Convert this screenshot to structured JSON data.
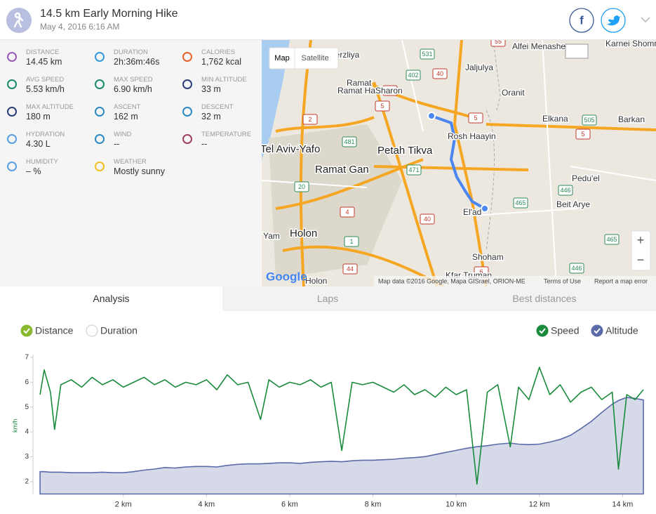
{
  "header": {
    "title": "14.5 km Early Morning Hike",
    "date": "May 4, 2016 6:16 AM"
  },
  "stats": [
    {
      "label": "Distance",
      "value": "14.45 km"
    },
    {
      "label": "Duration",
      "value": "2h:36m:46s"
    },
    {
      "label": "Calories",
      "value": "1,762 kcal"
    },
    {
      "label": "Avg speed",
      "value": "5.53 km/h"
    },
    {
      "label": "Max speed",
      "value": "6.90 km/h"
    },
    {
      "label": "Min altitude",
      "value": "33 m"
    },
    {
      "label": "Max altitude",
      "value": "180 m"
    },
    {
      "label": "Ascent",
      "value": "162 m"
    },
    {
      "label": "Descent",
      "value": "32 m"
    },
    {
      "label": "Hydration",
      "value": "4.30 L"
    },
    {
      "label": "Wind",
      "value": "--"
    },
    {
      "label": "Temperature",
      "value": "--"
    },
    {
      "label": "Humidity",
      "value": "– %"
    },
    {
      "label": "Weather",
      "value": "Mostly sunny"
    }
  ],
  "map": {
    "buttons": [
      "Map",
      "Satellite"
    ],
    "zoom": [
      "+",
      "−"
    ],
    "labels": [
      "Herzliya",
      "Ramat HaSharon",
      "Tel Aviv-Yafo",
      "Petah Tikva",
      "Ramat Gan",
      "Holon",
      "Yam",
      "Rosh Haayin",
      "El'ad",
      "Shoham",
      "Kfar Truman",
      "Jaljulya",
      "Oranit",
      "Elkana",
      "Barkan",
      "Alfei Menashe",
      "Karnei Shomron",
      "Pedu'el",
      "Beit Arye",
      "Holon"
    ],
    "shields": [
      "531",
      "402",
      "40",
      "4",
      "5",
      "2",
      "481",
      "471",
      "20",
      "4",
      "1",
      "40",
      "44",
      "6",
      "5",
      "505",
      "5",
      "446",
      "465",
      "465",
      "446",
      "55"
    ],
    "logo": "Google",
    "footer": [
      "Map data ©2016 Google, Mapa GISrael, ORION-ME",
      "Terms of Use",
      "Report a map error"
    ]
  },
  "tabs": [
    "Analysis",
    "Laps",
    "Best distances"
  ],
  "x_modes": [
    "Distance",
    "Duration"
  ],
  "chart_data": {
    "type": "line",
    "ylabel": "km/h",
    "x": [
      0,
      0.1,
      0.25,
      0.35,
      0.5,
      0.75,
      1,
      1.25,
      1.5,
      1.75,
      2,
      2.25,
      2.5,
      2.75,
      3,
      3.25,
      3.5,
      3.75,
      4,
      4.25,
      4.5,
      4.75,
      5,
      5.3,
      5.5,
      5.75,
      6,
      6.25,
      6.5,
      6.75,
      7,
      7.25,
      7.5,
      7.75,
      8,
      8.25,
      8.5,
      8.75,
      9,
      9.25,
      9.5,
      9.75,
      10,
      10.25,
      10.5,
      10.75,
      11,
      11.3,
      11.5,
      11.75,
      12,
      12.25,
      12.5,
      12.75,
      13,
      13.25,
      13.5,
      13.75,
      13.9,
      14.1,
      14.3,
      14.5
    ],
    "series": [
      {
        "name": "Speed",
        "color": "#1a8a3c",
        "values": [
          5.5,
          6.5,
          5.6,
          4.1,
          5.9,
          6.1,
          5.8,
          6.2,
          5.9,
          6.1,
          5.8,
          6.0,
          6.2,
          5.9,
          6.1,
          5.8,
          6.0,
          5.9,
          6.1,
          5.7,
          6.3,
          5.9,
          6.0,
          4.5,
          6.1,
          5.8,
          6.0,
          5.9,
          6.1,
          5.8,
          6.0,
          3.25,
          6.0,
          5.9,
          6.0,
          5.8,
          5.6,
          5.9,
          5.5,
          5.7,
          5.4,
          5.8,
          5.5,
          5.7,
          1.9,
          5.6,
          5.9,
          3.4,
          5.8,
          5.3,
          6.6,
          5.5,
          5.9,
          5.2,
          5.6,
          5.8,
          5.3,
          5.6,
          2.5,
          5.5,
          5.3,
          5.7
        ]
      },
      {
        "name": "Altitude",
        "color": "#5b6aa8",
        "axis": "y2",
        "values": [
          35,
          35,
          34,
          34,
          34,
          33,
          33,
          33,
          34,
          33,
          33,
          35,
          38,
          40,
          43,
          42,
          44,
          45,
          45,
          44,
          47,
          49,
          50,
          50,
          51,
          52,
          52,
          51,
          53,
          54,
          55,
          54,
          56,
          57,
          57,
          58,
          59,
          61,
          62,
          64,
          68,
          72,
          76,
          80,
          83,
          85,
          88,
          90,
          88,
          87,
          88,
          92,
          97,
          105,
          118,
          132,
          149,
          165,
          172,
          178,
          176,
          173
        ]
      }
    ],
    "xlim": [
      -0.17,
      14.55
    ],
    "xticks": [
      {
        "value": 2,
        "label": "2 km"
      },
      {
        "value": 4,
        "label": "4 km"
      },
      {
        "value": 6,
        "label": "6 km"
      },
      {
        "value": 8,
        "label": "8 km"
      },
      {
        "value": 10,
        "label": "10 km"
      },
      {
        "value": 12,
        "label": "12 km"
      },
      {
        "value": 14,
        "label": "14 km"
      }
    ],
    "ylim": [
      1.5,
      7
    ],
    "yticks": [
      2,
      3,
      4,
      5,
      6,
      7
    ],
    "y2lim": [
      -8,
      255
    ]
  }
}
